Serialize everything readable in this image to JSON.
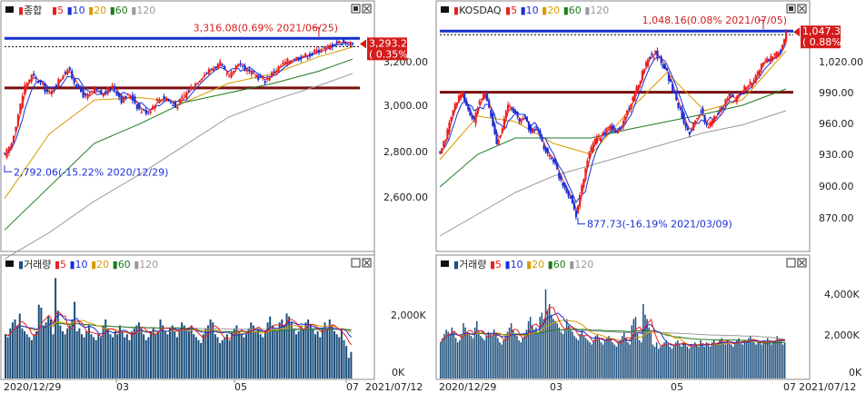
{
  "kospi": {
    "legend": {
      "label": "종합",
      "ma": [
        "5",
        "10",
        "20",
        "60",
        "120"
      ]
    },
    "last_price": "3,293.21",
    "last_change": "( 0.35%)",
    "high_label": "3,316.08(0.69% 2021/06/25)",
    "low_label": "2,792.06(-15.22% 2020/12/29)",
    "y_ticks": [
      "3,200.00",
      "3,000.00",
      "2,800.00",
      "2,600.00"
    ],
    "volume": {
      "legend": {
        "label": "거래량",
        "ma": [
          "5",
          "10",
          "20",
          "60",
          "120"
        ]
      },
      "y_ticks": [
        "2,000K",
        "0K"
      ]
    },
    "x_ticks": [
      "2020/12/29",
      "03",
      "05",
      "07"
    ],
    "end_date": "2021/07/12"
  },
  "kosdaq": {
    "legend": {
      "label": "KOSDAQ",
      "ma": [
        "5",
        "10",
        "20",
        "60",
        "120"
      ]
    },
    "last_price": "1,047.33",
    "last_change": "( 0.88%)",
    "high_label": "1,048.16(0.08% 2021/07/05)",
    "low_label": "877.73(-16.19% 2021/03/09)",
    "y_ticks": [
      "1,020.00",
      "990.00",
      "960.00",
      "930.00",
      "900.00",
      "870.00"
    ],
    "volume": {
      "legend": {
        "label": "거래량",
        "ma": [
          "5",
          "10",
          "20",
          "60",
          "120"
        ]
      },
      "y_ticks": [
        "4,000K",
        "2,000K",
        "0K"
      ]
    },
    "x_ticks": [
      "2020/12/29",
      "03",
      "05",
      "07"
    ],
    "end_date": "2021/07/12"
  },
  "colors": {
    "up": "#e8211f",
    "down": "#1a2fd6",
    "ma5": "#e8211f",
    "ma10": "#1a2fd6",
    "ma20": "#d89a00",
    "ma60": "#1e7a1e",
    "ma120": "#9a9a9a",
    "blue_line": "#1530c8",
    "maroon_line": "#7a0f0f",
    "volume_bar": "#1c4f7c",
    "price_tag": "#d41c1c"
  },
  "chart_data": [
    {
      "type": "candlestick",
      "title": "종합",
      "x_range": [
        "2020/12/29",
        "2021/07/12"
      ],
      "ylim": [
        2450,
        3400
      ],
      "y_ticks": [
        3200,
        3000,
        2800,
        2600
      ],
      "last": 3293.21,
      "high": {
        "value": 3316.08,
        "date": "2021/06/25"
      },
      "low": {
        "value": 2792.06,
        "date": "2020/12/29"
      },
      "horizontal_lines": [
        3316.08,
        3110
      ],
      "close_path": [
        [
          0,
          2830
        ],
        [
          3,
          2880
        ],
        [
          6,
          3000
        ],
        [
          9,
          3120
        ],
        [
          12,
          3160
        ],
        [
          16,
          3130
        ],
        [
          20,
          3080
        ],
        [
          24,
          3140
        ],
        [
          28,
          3190
        ],
        [
          32,
          3120
        ],
        [
          36,
          3070
        ],
        [
          40,
          3100
        ],
        [
          44,
          3080
        ],
        [
          48,
          3120
        ],
        [
          52,
          3060
        ],
        [
          56,
          3080
        ],
        [
          60,
          3020
        ],
        [
          64,
          3010
        ],
        [
          68,
          3060
        ],
        [
          72,
          3070
        ],
        [
          76,
          3030
        ],
        [
          80,
          3080
        ],
        [
          84,
          3120
        ],
        [
          88,
          3160
        ],
        [
          92,
          3190
        ],
        [
          96,
          3210
        ],
        [
          100,
          3150
        ],
        [
          104,
          3220
        ],
        [
          108,
          3180
        ],
        [
          112,
          3160
        ],
        [
          116,
          3140
        ],
        [
          120,
          3180
        ],
        [
          124,
          3210
        ],
        [
          128,
          3230
        ],
        [
          132,
          3240
        ],
        [
          136,
          3250
        ],
        [
          140,
          3270
        ],
        [
          144,
          3280
        ],
        [
          148,
          3300
        ],
        [
          152,
          3300
        ],
        [
          155,
          3290
        ]
      ],
      "ma_series": [
        {
          "name": "20",
          "points": [
            [
              0,
              2650
            ],
            [
              20,
              2920
            ],
            [
              40,
              3060
            ],
            [
              60,
              3070
            ],
            [
              80,
              3050
            ],
            [
              100,
              3130
            ],
            [
              120,
              3170
            ],
            [
              140,
              3240
            ],
            [
              155,
              3280
            ]
          ]
        },
        {
          "name": "60",
          "points": [
            [
              0,
              2520
            ],
            [
              20,
              2700
            ],
            [
              40,
              2880
            ],
            [
              60,
              2960
            ],
            [
              80,
              3050
            ],
            [
              100,
              3090
            ],
            [
              120,
              3130
            ],
            [
              140,
              3180
            ],
            [
              155,
              3230
            ]
          ]
        },
        {
          "name": "120",
          "points": [
            [
              0,
              2400
            ],
            [
              20,
              2510
            ],
            [
              40,
              2640
            ],
            [
              60,
              2750
            ],
            [
              80,
              2870
            ],
            [
              100,
              2990
            ],
            [
              120,
              3060
            ],
            [
              140,
              3120
            ],
            [
              155,
              3170
            ]
          ]
        }
      ],
      "volume": {
        "ylim": [
          0,
          3600
        ],
        "unit": "K",
        "values": [
          1500,
          1400,
          1700,
          1900,
          2000,
          1800,
          2200,
          1700,
          1600,
          1500,
          1400,
          1300,
          1500,
          1600,
          2500,
          2400,
          1800,
          1900,
          2100,
          2000,
          1500,
          3400,
          2300,
          1800,
          1600,
          1500,
          1700,
          1800,
          2000,
          2600,
          1600,
          1700,
          1500,
          1400,
          1600,
          1800,
          1500,
          1400,
          1300,
          1500,
          1400,
          1800,
          2000,
          1700,
          1500,
          1400,
          1600,
          1500,
          1800,
          1600,
          1400,
          1500,
          1300,
          1600,
          1700,
          1800,
          1900,
          1700,
          1500,
          1300,
          1400,
          1600,
          1700,
          1500,
          1600,
          2000,
          1800,
          1600,
          1500,
          1700,
          1800,
          1600,
          1400,
          1600,
          1900,
          1800,
          1700,
          1600,
          1800,
          1500,
          1400,
          1300,
          1200,
          1500,
          1700,
          1800,
          2000,
          1900,
          1500,
          1400,
          1200,
          1300,
          1400,
          1500,
          1300,
          1600,
          1700,
          1800,
          1600,
          1500,
          1400,
          1500,
          1700,
          1900,
          1800,
          1600,
          1700,
          1500,
          1400,
          1600,
          1900,
          2100,
          1800,
          1700,
          1600,
          1900,
          2000,
          1800,
          2200,
          2100,
          1900,
          1700,
          1500,
          1600,
          1800,
          1700,
          1900,
          2000,
          1800,
          1700,
          1500,
          1600,
          1400,
          1700,
          1900,
          1700,
          2000,
          1800,
          1600,
          1500,
          1400,
          1700,
          1300,
          1100,
          700,
          900
        ]
      }
    },
    {
      "type": "candlestick",
      "title": "KOSDAQ",
      "x_range": [
        "2020/12/29",
        "2021/07/12"
      ],
      "ylim": [
        850,
        1060
      ],
      "y_ticks": [
        1020,
        990,
        960,
        930,
        900,
        870
      ],
      "last": 1047.33,
      "high": {
        "value": 1048.16,
        "date": "2021/07/05"
      },
      "low": {
        "value": 877.73,
        "date": "2021/03/09"
      },
      "horizontal_lines": [
        1048.16,
        992
      ],
      "close_path": [
        [
          0,
          935
        ],
        [
          3,
          950
        ],
        [
          6,
          970
        ],
        [
          9,
          985
        ],
        [
          12,
          990
        ],
        [
          15,
          975
        ],
        [
          18,
          965
        ],
        [
          21,
          985
        ],
        [
          24,
          990
        ],
        [
          27,
          970
        ],
        [
          30,
          945
        ],
        [
          33,
          960
        ],
        [
          36,
          980
        ],
        [
          39,
          975
        ],
        [
          42,
          965
        ],
        [
          45,
          970
        ],
        [
          48,
          955
        ],
        [
          51,
          960
        ],
        [
          54,
          945
        ],
        [
          57,
          935
        ],
        [
          60,
          930
        ],
        [
          63,
          915
        ],
        [
          66,
          905
        ],
        [
          69,
          895
        ],
        [
          72,
          880
        ],
        [
          75,
          905
        ],
        [
          78,
          930
        ],
        [
          81,
          945
        ],
        [
          84,
          950
        ],
        [
          87,
          955
        ],
        [
          90,
          960
        ],
        [
          93,
          955
        ],
        [
          96,
          960
        ],
        [
          99,
          975
        ],
        [
          102,
          985
        ],
        [
          105,
          1000
        ],
        [
          108,
          1015
        ],
        [
          111,
          1025
        ],
        [
          114,
          1028
        ],
        [
          117,
          1020
        ],
        [
          120,
          1010
        ],
        [
          123,
          995
        ],
        [
          126,
          980
        ],
        [
          129,
          965
        ],
        [
          132,
          955
        ],
        [
          135,
          965
        ],
        [
          138,
          975
        ],
        [
          141,
          960
        ],
        [
          144,
          965
        ],
        [
          147,
          975
        ],
        [
          150,
          980
        ],
        [
          153,
          990
        ],
        [
          156,
          985
        ],
        [
          159,
          992
        ],
        [
          162,
          998
        ],
        [
          165,
          1000
        ],
        [
          168,
          1010
        ],
        [
          171,
          1020
        ],
        [
          174,
          1022
        ],
        [
          177,
          1025
        ],
        [
          180,
          1030
        ],
        [
          183,
          1047
        ]
      ],
      "ma_series": [
        {
          "name": "20",
          "points": [
            [
              0,
              930
            ],
            [
              20,
              970
            ],
            [
              40,
              965
            ],
            [
              60,
              945
            ],
            [
              80,
              935
            ],
            [
              100,
              975
            ],
            [
              120,
              1010
            ],
            [
              140,
              975
            ],
            [
              160,
              985
            ],
            [
              183,
              1030
            ]
          ]
        },
        {
          "name": "60",
          "points": [
            [
              0,
              905
            ],
            [
              20,
              935
            ],
            [
              40,
              950
            ],
            [
              60,
              950
            ],
            [
              80,
              950
            ],
            [
              100,
              958
            ],
            [
              120,
              965
            ],
            [
              140,
              972
            ],
            [
              160,
              980
            ],
            [
              183,
              995
            ]
          ]
        },
        {
          "name": "120",
          "points": [
            [
              0,
              860
            ],
            [
              20,
              880
            ],
            [
              40,
              900
            ],
            [
              60,
              915
            ],
            [
              80,
              925
            ],
            [
              100,
              935
            ],
            [
              120,
              945
            ],
            [
              140,
              955
            ],
            [
              160,
              962
            ],
            [
              183,
              975
            ]
          ]
        }
      ],
      "volume": {
        "ylim": [
          0,
          5000
        ],
        "unit": "K",
        "values": [
          1700,
          1900,
          2100,
          2300,
          2200,
          2000,
          2400,
          2200,
          1900,
          1700,
          1800,
          2000,
          2600,
          2400,
          2200,
          2100,
          2000,
          1900,
          2400,
          2700,
          2200,
          2000,
          1900,
          1800,
          2000,
          2200,
          2100,
          2000,
          2300,
          2100,
          1900,
          1700,
          1600,
          1800,
          2000,
          2200,
          2400,
          2600,
          2300,
          2100,
          2000,
          1800,
          1700,
          1900,
          2100,
          2300,
          2700,
          2900,
          2500,
          2300,
          2400,
          2100,
          2900,
          3100,
          2800,
          4200,
          3200,
          3500,
          3000,
          2800,
          2700,
          2600,
          2400,
          2200,
          2100,
          2300,
          2800,
          2500,
          2300,
          2200,
          2000,
          1900,
          1800,
          2100,
          2300,
          2000,
          1900,
          1800,
          1700,
          1600,
          1800,
          2000,
          2100,
          1900,
          1700,
          1600,
          1800,
          1900,
          2000,
          1800,
          1700,
          1600,
          1500,
          1700,
          1800,
          2000,
          2200,
          1900,
          1700,
          1600,
          2500,
          2800,
          2900,
          2100,
          1800,
          1700,
          3500,
          3000,
          2800,
          2400,
          2200,
          1600,
          1500,
          1700,
          1400,
          1500,
          1600,
          1700,
          1800,
          1600,
          1500,
          1400,
          1600,
          1700,
          1800,
          1600,
          1500,
          1700,
          1600,
          1500,
          1400,
          1600,
          1500,
          1700,
          1600,
          1500,
          1800,
          1600,
          1500,
          1700,
          1600,
          1500,
          1700,
          1800,
          1600,
          1700,
          1800,
          1900,
          1700,
          1600,
          1800,
          1700,
          1600,
          1500,
          1700,
          1800,
          1900,
          1700,
          1600,
          1800,
          1700,
          1900,
          2000,
          1800,
          1700,
          1600,
          1800,
          1700,
          1600,
          1800,
          1700,
          1900,
          1800,
          1600,
          1700,
          1800,
          2000,
          1900,
          1800,
          1600,
          1700
        ]
      }
    }
  ]
}
